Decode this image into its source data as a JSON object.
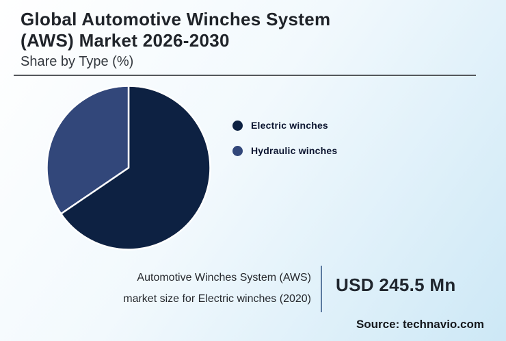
{
  "header": {
    "title_lines": [
      "Global Automotive Winches System",
      "(AWS) Market 2026-2030"
    ],
    "subtitle": "Share by Type (%)"
  },
  "chart_data": {
    "type": "pie",
    "title": "Global Automotive Winches System (AWS) Market 2026-2030 - Share by Type (%)",
    "categories": [
      "Electric winches",
      "Hydraulic winches"
    ],
    "values": [
      65.5,
      34.5
    ],
    "units": "%",
    "colors": [
      "#0d2142",
      "#32477a"
    ],
    "slice_stroke_color": "#ffffff",
    "start_angle_deg": 0,
    "legend_position": "right",
    "data_labels_shown": false
  },
  "footer": {
    "caption_line1": "Automotive Winches System (AWS)",
    "caption_line2": "market size for Electric winches (2020)",
    "value": "USD 245.5 Mn",
    "source": "Source: technavio.com"
  },
  "theme": {
    "background_start": "#ffffff",
    "background_end": "#cde8f6",
    "title_color": "#1f2329",
    "rule_color": "#54585c",
    "vertical_divider_color": "#5b7aa0"
  }
}
